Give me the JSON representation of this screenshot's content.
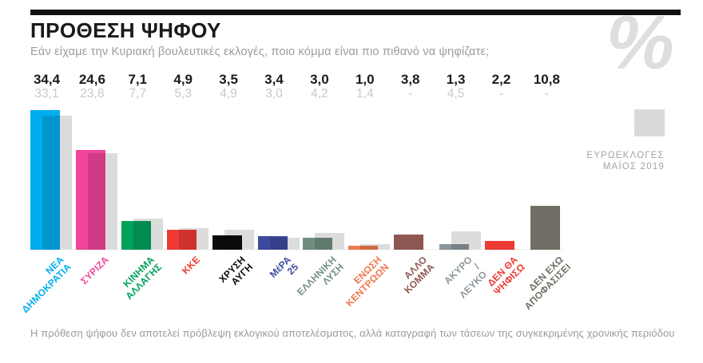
{
  "header": {
    "title": "ΠΡΟΘΕΣΗ ΨΗΦΟΥ",
    "subtitle": "Εάν είχαμε την Κυριακή βουλευτικές εκλογές, ποιο κόμμα είναι πιο πιθανό να ψηφίζατε;",
    "percent_symbol": "%"
  },
  "legend": {
    "swatch_color": "#dadada",
    "label": "ΕΥΡΩΕΚΛΟΓΕΣ\nΜΑΪΟΣ 2019"
  },
  "footer": {
    "disclaimer": "Η πρόθεση ψήφου δεν αποτελεί πρόβλεψη εκλογικού αποτελέσματος, αλλά καταγραφή των τάσεων της συγκεκριμένης χρονικής περιόδου"
  },
  "chart_data": {
    "type": "bar",
    "unit": "%",
    "title": "ΠΡΟΘΕΣΗ ΨΗΦΟΥ",
    "ylim": [
      0,
      35
    ],
    "grid": false,
    "legend_position": "right",
    "comparison_series_color": "#dcdcdc",
    "categories": [
      "ΝΕΑ ΔΗΜΟΚΡΑΤΙΑ",
      "ΣΥΡΙΖΑ",
      "ΚΙΝΗΜΑ ΑΛΛΑΓΗΣ",
      "ΚΚΕ",
      "ΧΡΥΣΗ ΑΥΓΗ",
      "ΜέΡΑ 25",
      "ΕΛΛΗΝΙΚΗ ΛΥΣΗ",
      "ΕΝΩΣΗ ΚΕΝΤΡΩΩΝ",
      "ΑΛΛΟ ΚΟΜΜΑ",
      "ΑΚΥΡΟ / ΛΕΥΚΟ",
      "ΔΕΝ ΘΑ ΨΗΦΙΣΩ",
      "ΔΕΝ ΕΧΩ ΑΠΟΦΑΣΙΣΕΙ"
    ],
    "series": [
      {
        "name": "ΠΡΟΘΕΣΗ ΨΗΦΟΥ",
        "values": [
          34.4,
          24.6,
          7.1,
          4.9,
          3.5,
          3.4,
          3.0,
          1.0,
          3.8,
          1.3,
          2.2,
          10.8
        ]
      },
      {
        "name": "ΕΥΡΩΕΚΛΟΓΕΣ ΜΑΪΟΣ 2019",
        "values": [
          33.1,
          23.8,
          7.7,
          5.3,
          4.9,
          3.0,
          4.2,
          1.4,
          null,
          4.5,
          null,
          null
        ]
      }
    ],
    "bars": [
      {
        "party": "ΝΕΑ ΔΗΜΟΚΡΑΤΙΑ",
        "label": "ΝΕΑ\nΔΗΜΟΚΡΑΤΙΑ",
        "current_label": "34,4",
        "current": 34.4,
        "euro_label": "33,1",
        "euro": 33.1,
        "color": "#00aeef"
      },
      {
        "party": "ΣΥΡΙΖΑ",
        "label": "ΣΥΡΙΖΑ",
        "current_label": "24,6",
        "current": 24.6,
        "euro_label": "23,8",
        "euro": 23.8,
        "color": "#f0459a"
      },
      {
        "party": "ΚΙΝΗΜΑ ΑΛΛΑΓΗΣ",
        "label": "ΚΙΝΗΜΑ\nΑΛΛΑΓΗΣ",
        "current_label": "7,1",
        "current": 7.1,
        "euro_label": "7,7",
        "euro": 7.7,
        "color": "#00a25a"
      },
      {
        "party": "ΚΚΕ",
        "label": "ΚΚΕ",
        "current_label": "4,9",
        "current": 4.9,
        "euro_label": "5,3",
        "euro": 5.3,
        "color": "#ee3b33"
      },
      {
        "party": "ΧΡΥΣΗ ΑΥΓΗ",
        "label": "ΧΡΥΣΗ\nΑΥΓΗ",
        "current_label": "3,5",
        "current": 3.5,
        "euro_label": "4,9",
        "euro": 4.9,
        "color": "#0c0c0c"
      },
      {
        "party": "ΜέΡΑ 25",
        "label": "ΜέΡΑ 25",
        "current_label": "3,4",
        "current": 3.4,
        "euro_label": "3,0",
        "euro": 3.0,
        "color": "#3c4b9e"
      },
      {
        "party": "ΕΛΛΗΝΙΚΗ ΛΥΣΗ",
        "label": "ΕΛΛΗΝΙΚΗ\nΛΥΣΗ",
        "current_label": "3,0",
        "current": 3.0,
        "euro_label": "4,2",
        "euro": 4.2,
        "color": "#6f8e80"
      },
      {
        "party": "ΕΝΩΣΗ ΚΕΝΤΡΩΩΝ",
        "label": "ΕΝΩΣΗ\nΚΕΝΤΡΩΩΝ",
        "current_label": "1,0",
        "current": 1.0,
        "euro_label": "1,4",
        "euro": 1.4,
        "color": "#f07950"
      },
      {
        "party": "ΑΛΛΟ ΚΟΜΜΑ",
        "label": "ΑΛΛΟ\nΚΟΜΜΑ",
        "current_label": "3,8",
        "current": 3.8,
        "euro_label": "-",
        "euro": null,
        "color": "#8e5751"
      },
      {
        "party": "ΑΚΥΡΟ / ΛΕΥΚΟ",
        "label": "ΑΚΥΡΟ /\nΛΕΥΚΟ",
        "current_label": "1,3",
        "current": 1.3,
        "euro_label": "4,5",
        "euro": 4.5,
        "color": "#8b969c"
      },
      {
        "party": "ΔΕΝ ΘΑ ΨΗΦΙΣΩ",
        "label": "ΔΕΝ ΘΑ\nΨΗΦΙΣΩ",
        "current_label": "2,2",
        "current": 2.2,
        "euro_label": "-",
        "euro": null,
        "color": "#ee3b33"
      },
      {
        "party": "ΔΕΝ ΕΧΩ ΑΠΟΦΑΣΙΣΕΙ",
        "label": "ΔΕΝ ΕΧΩ\nΑΠΟΦΑΣΙΣΕΙ",
        "current_label": "10,8",
        "current": 10.8,
        "euro_label": "-",
        "euro": null,
        "color": "#706e64"
      }
    ]
  }
}
